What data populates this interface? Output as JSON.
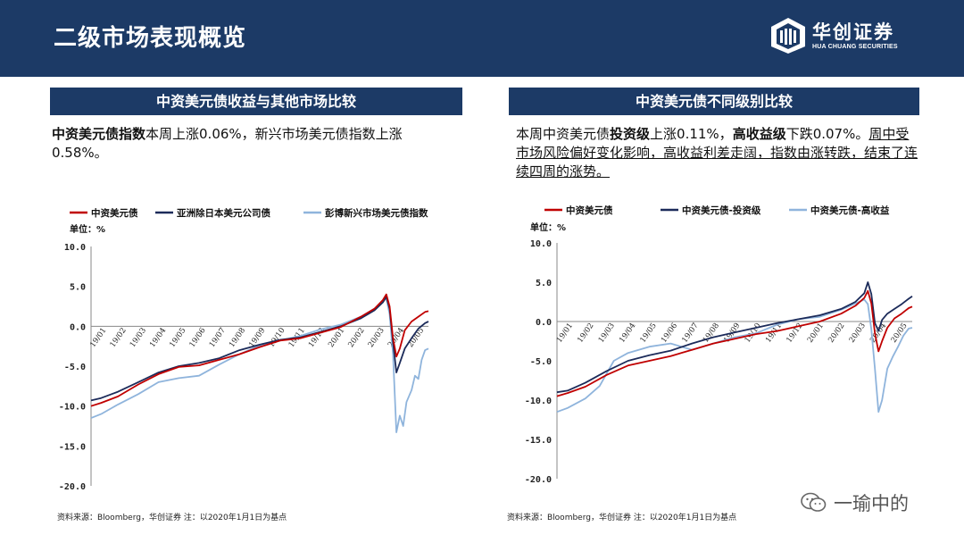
{
  "header": {
    "title": "二级市场表现概览"
  },
  "logo": {
    "cn": "华创证券",
    "en": "HUA CHUANG SECURITIES"
  },
  "left": {
    "panel_title": "中资美元债收益与其他市场比较",
    "desc_bold": "中资美元债指数",
    "desc_rest": "本周上涨0.06%，新兴市场美元债指数上涨0.58%。",
    "source": "资料来源：Bloomberg，华创证券   注：以2020年1月1日为基点"
  },
  "right": {
    "panel_title": "中资美元债不同级别比较",
    "desc_p1": "本周中资美元债",
    "desc_b1": "投资级",
    "desc_p2": "上涨0.11%，",
    "desc_b2": "高收益级",
    "desc_p3": "下跌0.07%。",
    "desc_u": "周中受市场风险偏好变化影响，高收益利差走阔，指数由涨转跌，结束了连续四周的涨势。",
    "source": "资料来源：Bloomberg，华创证券   注：以2020年1月1日为基点"
  },
  "watermark": "一瑜中的",
  "chart_data": [
    {
      "type": "line",
      "ylabel": "单位：%",
      "ylim": [
        -20,
        10
      ],
      "yticks": [
        "10.0",
        "5.0",
        "0.0",
        "-5.0",
        "-10.0",
        "-15.0",
        "-20.0"
      ],
      "x_labels": [
        "19/01",
        "19/02",
        "19/03",
        "19/04",
        "19/05",
        "19/06",
        "19/07",
        "19/08",
        "19/09",
        "19/10",
        "19/11",
        "19/12",
        "20/01",
        "20/02",
        "20/03",
        "20/04",
        "20/05"
      ],
      "legend_position": "top",
      "series": [
        {
          "name": "中资美元债",
          "color": "#c00000",
          "width": 1.8,
          "points": [
            [
              0,
              -10
            ],
            [
              0.03,
              -9.6
            ],
            [
              0.08,
              -8.8
            ],
            [
              0.14,
              -7.3
            ],
            [
              0.2,
              -6
            ],
            [
              0.26,
              -5.1
            ],
            [
              0.32,
              -4.9
            ],
            [
              0.38,
              -4.2
            ],
            [
              0.44,
              -3.5
            ],
            [
              0.5,
              -2.6
            ],
            [
              0.56,
              -1.8
            ],
            [
              0.62,
              -1.5
            ],
            [
              0.68,
              -0.8
            ],
            [
              0.74,
              -0.1
            ],
            [
              0.8,
              1.2
            ],
            [
              0.84,
              2.2
            ],
            [
              0.865,
              3.3
            ],
            [
              0.875,
              4.0
            ],
            [
              0.885,
              2.5
            ],
            [
              0.895,
              -1.5
            ],
            [
              0.905,
              -3.8
            ],
            [
              0.915,
              -2.8
            ],
            [
              0.93,
              -0.5
            ],
            [
              0.95,
              0.6
            ],
            [
              0.97,
              1.2
            ],
            [
              0.99,
              1.8
            ],
            [
              1.0,
              1.9
            ]
          ]
        },
        {
          "name": "亚洲除日本美元公司债",
          "color": "#1c2b5a",
          "width": 1.8,
          "points": [
            [
              0,
              -9.3
            ],
            [
              0.03,
              -9
            ],
            [
              0.08,
              -8.2
            ],
            [
              0.14,
              -7
            ],
            [
              0.2,
              -5.8
            ],
            [
              0.26,
              -5
            ],
            [
              0.32,
              -4.6
            ],
            [
              0.38,
              -4.0
            ],
            [
              0.44,
              -3.0
            ],
            [
              0.5,
              -2.3
            ],
            [
              0.56,
              -1.7
            ],
            [
              0.62,
              -1.4
            ],
            [
              0.68,
              -0.7
            ],
            [
              0.74,
              0.0
            ],
            [
              0.8,
              1.0
            ],
            [
              0.84,
              2.0
            ],
            [
              0.865,
              3.0
            ],
            [
              0.875,
              3.7
            ],
            [
              0.885,
              2.2
            ],
            [
              0.895,
              -2.0
            ],
            [
              0.905,
              -5.8
            ],
            [
              0.915,
              -4.6
            ],
            [
              0.93,
              -2.8
            ],
            [
              0.95,
              -1.5
            ],
            [
              0.97,
              -0.3
            ],
            [
              0.99,
              0.4
            ],
            [
              1.0,
              0.6
            ]
          ]
        },
        {
          "name": "彭博新兴市场美元债指数",
          "color": "#8fb4dc",
          "width": 1.8,
          "points": [
            [
              0,
              -11.5
            ],
            [
              0.03,
              -11
            ],
            [
              0.08,
              -9.8
            ],
            [
              0.14,
              -8.5
            ],
            [
              0.2,
              -7
            ],
            [
              0.26,
              -6.5
            ],
            [
              0.32,
              -6.2
            ],
            [
              0.38,
              -4.8
            ],
            [
              0.44,
              -3.5
            ],
            [
              0.5,
              -2.4
            ],
            [
              0.56,
              -1.8
            ],
            [
              0.62,
              -1.2
            ],
            [
              0.68,
              -0.4
            ],
            [
              0.74,
              0.2
            ],
            [
              0.8,
              1.2
            ],
            [
              0.84,
              2.2
            ],
            [
              0.865,
              3.1
            ],
            [
              0.875,
              3.5
            ],
            [
              0.885,
              1.5
            ],
            [
              0.895,
              -3.5
            ],
            [
              0.905,
              -13.3
            ],
            [
              0.915,
              -11.2
            ],
            [
              0.925,
              -12.5
            ],
            [
              0.935,
              -9.5
            ],
            [
              0.95,
              -8.0
            ],
            [
              0.96,
              -6.2
            ],
            [
              0.97,
              -6.6
            ],
            [
              0.98,
              -4.2
            ],
            [
              0.99,
              -3.0
            ],
            [
              1.0,
              -2.8
            ]
          ]
        }
      ]
    },
    {
      "type": "line",
      "ylabel": "单位：%",
      "ylim": [
        -20,
        10
      ],
      "yticks": [
        "10.0",
        "5.0",
        "0.0",
        "-5.0",
        "-10.0",
        "-15.0",
        "-20.0"
      ],
      "x_labels": [
        "19/01",
        "19/02",
        "19/03",
        "19/04",
        "19/05",
        "19/06",
        "19/07",
        "19/08",
        "19/09",
        "19/10",
        "19/11",
        "19/12",
        "20/01",
        "20/02",
        "20/03",
        "20/04",
        "20/05"
      ],
      "legend_position": "top",
      "series": [
        {
          "name": "中资美元债",
          "color": "#c00000",
          "width": 1.8,
          "points": [
            [
              0,
              -9.5
            ],
            [
              0.03,
              -9.1
            ],
            [
              0.08,
              -8.3
            ],
            [
              0.14,
              -6.8
            ],
            [
              0.2,
              -5.6
            ],
            [
              0.26,
              -5.0
            ],
            [
              0.32,
              -4.4
            ],
            [
              0.38,
              -3.6
            ],
            [
              0.44,
              -2.8
            ],
            [
              0.5,
              -2.2
            ],
            [
              0.56,
              -1.6
            ],
            [
              0.62,
              -1.2
            ],
            [
              0.68,
              -0.6
            ],
            [
              0.74,
              0.0
            ],
            [
              0.8,
              1.0
            ],
            [
              0.84,
              2.0
            ],
            [
              0.865,
              3.0
            ],
            [
              0.875,
              3.9
            ],
            [
              0.885,
              2.3
            ],
            [
              0.895,
              -1.5
            ],
            [
              0.905,
              -3.8
            ],
            [
              0.915,
              -2.5
            ],
            [
              0.93,
              -0.8
            ],
            [
              0.95,
              0.4
            ],
            [
              0.97,
              1.0
            ],
            [
              0.99,
              1.7
            ],
            [
              1.0,
              1.9
            ]
          ]
        },
        {
          "name": "中资美元债-投资级",
          "color": "#1c2b5a",
          "width": 1.8,
          "points": [
            [
              0,
              -9.0
            ],
            [
              0.03,
              -8.8
            ],
            [
              0.08,
              -7.8
            ],
            [
              0.14,
              -6.3
            ],
            [
              0.2,
              -5.0
            ],
            [
              0.26,
              -4.3
            ],
            [
              0.32,
              -3.7
            ],
            [
              0.38,
              -2.8
            ],
            [
              0.44,
              -2.0
            ],
            [
              0.5,
              -1.4
            ],
            [
              0.56,
              -0.8
            ],
            [
              0.62,
              -0.2
            ],
            [
              0.68,
              0.3
            ],
            [
              0.74,
              0.8
            ],
            [
              0.8,
              1.6
            ],
            [
              0.84,
              2.5
            ],
            [
              0.865,
              3.6
            ],
            [
              0.875,
              5.0
            ],
            [
              0.885,
              3.5
            ],
            [
              0.895,
              -0.2
            ],
            [
              0.905,
              -1.2
            ],
            [
              0.915,
              0.2
            ],
            [
              0.93,
              1.0
            ],
            [
              0.95,
              1.6
            ],
            [
              0.97,
              2.2
            ],
            [
              0.99,
              2.9
            ],
            [
              1.0,
              3.2
            ]
          ]
        },
        {
          "name": "中资美元债-高收益",
          "color": "#8fb4dc",
          "width": 1.8,
          "points": [
            [
              0,
              -11.5
            ],
            [
              0.03,
              -11.0
            ],
            [
              0.08,
              -9.8
            ],
            [
              0.12,
              -8.2
            ],
            [
              0.16,
              -5.0
            ],
            [
              0.2,
              -4.0
            ],
            [
              0.26,
              -3.2
            ],
            [
              0.32,
              -2.8
            ],
            [
              0.38,
              -3.6
            ],
            [
              0.44,
              -2.8
            ],
            [
              0.5,
              -2.0
            ],
            [
              0.56,
              -1.5
            ],
            [
              0.62,
              -0.4
            ],
            [
              0.68,
              0.3
            ],
            [
              0.74,
              0.6
            ],
            [
              0.8,
              1.5
            ],
            [
              0.84,
              2.3
            ],
            [
              0.865,
              2.8
            ],
            [
              0.875,
              2.2
            ],
            [
              0.885,
              -1.0
            ],
            [
              0.895,
              -6.0
            ],
            [
              0.905,
              -11.5
            ],
            [
              0.915,
              -10.0
            ],
            [
              0.93,
              -6.0
            ],
            [
              0.945,
              -4.5
            ],
            [
              0.96,
              -3.2
            ],
            [
              0.975,
              -1.8
            ],
            [
              0.99,
              -0.9
            ],
            [
              1.0,
              -0.8
            ]
          ]
        }
      ]
    }
  ]
}
